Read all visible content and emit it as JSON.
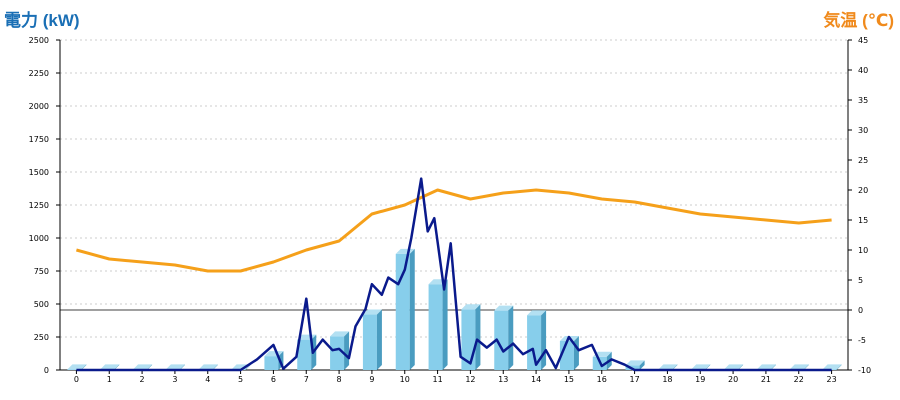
{
  "chart_data": {
    "type": "bar+line",
    "left_axis_title": "電力 (kW)",
    "right_axis_title": "気温 (℃)",
    "left_ylim": [
      0,
      2500
    ],
    "left_ticks": [
      0,
      250,
      500,
      750,
      1000,
      1250,
      1500,
      1750,
      2000,
      2250,
      2500
    ],
    "right_ylim": [
      -10,
      45
    ],
    "right_ticks": [
      -10,
      -5,
      0,
      5,
      10,
      15,
      20,
      25,
      30,
      35,
      40,
      45
    ],
    "categories": [
      "0",
      "1",
      "2",
      "3",
      "4",
      "5",
      "6",
      "7",
      "8",
      "9",
      "10",
      "11",
      "12",
      "13",
      "14",
      "15",
      "16",
      "17",
      "18",
      "19",
      "20",
      "21",
      "22",
      "23"
    ],
    "grid": "dashed-horizontal",
    "colors": {
      "bar_front": "#87ceeb",
      "bar_side": "#4a9cc0",
      "bar_top": "#b3e0f2",
      "power_line": "#0a1a8c",
      "temp_line": "#f5a01a",
      "left_title": "#1a6fb5",
      "right_title": "#f08a1c"
    },
    "bars_power_kw": [
      5,
      5,
      5,
      5,
      5,
      5,
      105,
      230,
      255,
      420,
      880,
      650,
      460,
      450,
      415,
      220,
      100,
      35,
      5,
      5,
      5,
      5,
      5,
      5
    ],
    "power_line_kw": {
      "x": [
        0,
        1,
        2,
        3,
        4,
        5,
        5.5,
        6,
        6.3,
        6.7,
        7,
        7.2,
        7.5,
        7.8,
        8,
        8.3,
        8.5,
        8.8,
        9,
        9.3,
        9.5,
        9.8,
        10,
        10.2,
        10.5,
        10.7,
        10.9,
        11,
        11.2,
        11.4,
        11.7,
        12,
        12.2,
        12.5,
        12.8,
        13,
        13.3,
        13.6,
        13.9,
        14,
        14.3,
        14.6,
        15,
        15.3,
        15.7,
        16,
        16.3,
        16.7,
        17,
        17.5,
        18,
        19,
        20,
        21,
        22,
        23
      ],
      "y": [
        0,
        0,
        0,
        0,
        0,
        0,
        80,
        190,
        10,
        100,
        540,
        130,
        230,
        150,
        160,
        90,
        330,
        460,
        650,
        570,
        700,
        650,
        760,
        1000,
        1450,
        1050,
        1150,
        970,
        610,
        960,
        100,
        50,
        230,
        170,
        230,
        140,
        200,
        120,
        160,
        40,
        150,
        15,
        250,
        150,
        190,
        30,
        80,
        40,
        0,
        0,
        0,
        0,
        0,
        0,
        0,
        0
      ]
    },
    "temperature_c": [
      10,
      8.5,
      8,
      7.5,
      6.5,
      6.5,
      8,
      10,
      11.5,
      16,
      17.5,
      20,
      18.5,
      19.5,
      20,
      19.5,
      18.5,
      18,
      17,
      16,
      15.5,
      15,
      14.5,
      15
    ]
  }
}
